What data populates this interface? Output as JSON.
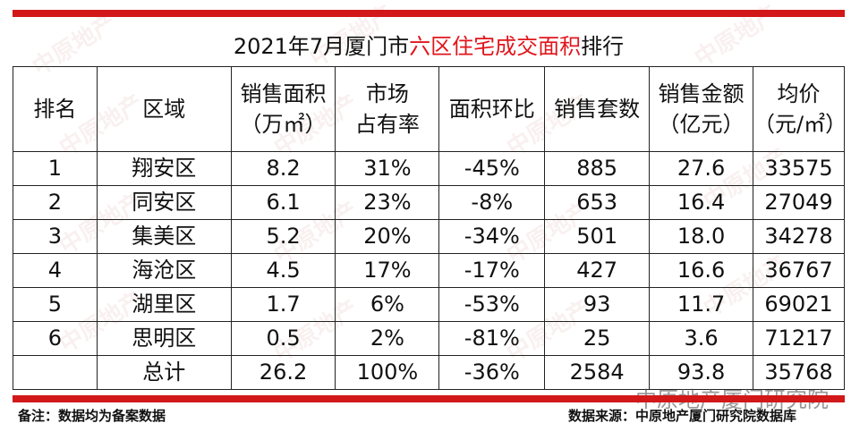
{
  "title": {
    "prefix": "2021年7月厦门市",
    "highlight1": "六区",
    "highlight2": "住宅成交面积",
    "suffix": "排行"
  },
  "colors": {
    "accent_red": "#d21818",
    "title_red": "#e0161c"
  },
  "headers": [
    [
      "排名"
    ],
    [
      "区域"
    ],
    [
      "销售面积",
      "（万㎡）"
    ],
    [
      "市场",
      "占有率"
    ],
    [
      "面积环比"
    ],
    [
      "销售套数"
    ],
    [
      "销售金额",
      "（亿元）"
    ],
    [
      "均价",
      "（元/㎡）"
    ]
  ],
  "rows": [
    [
      "1",
      "翔安区",
      "8.2",
      "31%",
      "-45%",
      "885",
      "27.6",
      "33575"
    ],
    [
      "2",
      "同安区",
      "6.1",
      "23%",
      "-8%",
      "653",
      "16.4",
      "27049"
    ],
    [
      "3",
      "集美区",
      "5.2",
      "20%",
      "-34%",
      "501",
      "18.0",
      "34278"
    ],
    [
      "4",
      "海沧区",
      "4.5",
      "17%",
      "-17%",
      "427",
      "16.6",
      "36767"
    ],
    [
      "5",
      "湖里区",
      "1.7",
      "6%",
      "-53%",
      "93",
      "11.7",
      "69021"
    ],
    [
      "6",
      "思明区",
      "0.5",
      "2%",
      "-81%",
      "25",
      "3.6",
      "71217"
    ],
    [
      "",
      "总计",
      "26.2",
      "100%",
      "-36%",
      "2584",
      "93.8",
      "35768"
    ]
  ],
  "footnote_left": "备注：数据均为备案数据",
  "footnote_right": "数据来源：中原地产厦门研究院数据库",
  "brand": "中原地产厦门研究院",
  "watermark": "中原地产"
}
